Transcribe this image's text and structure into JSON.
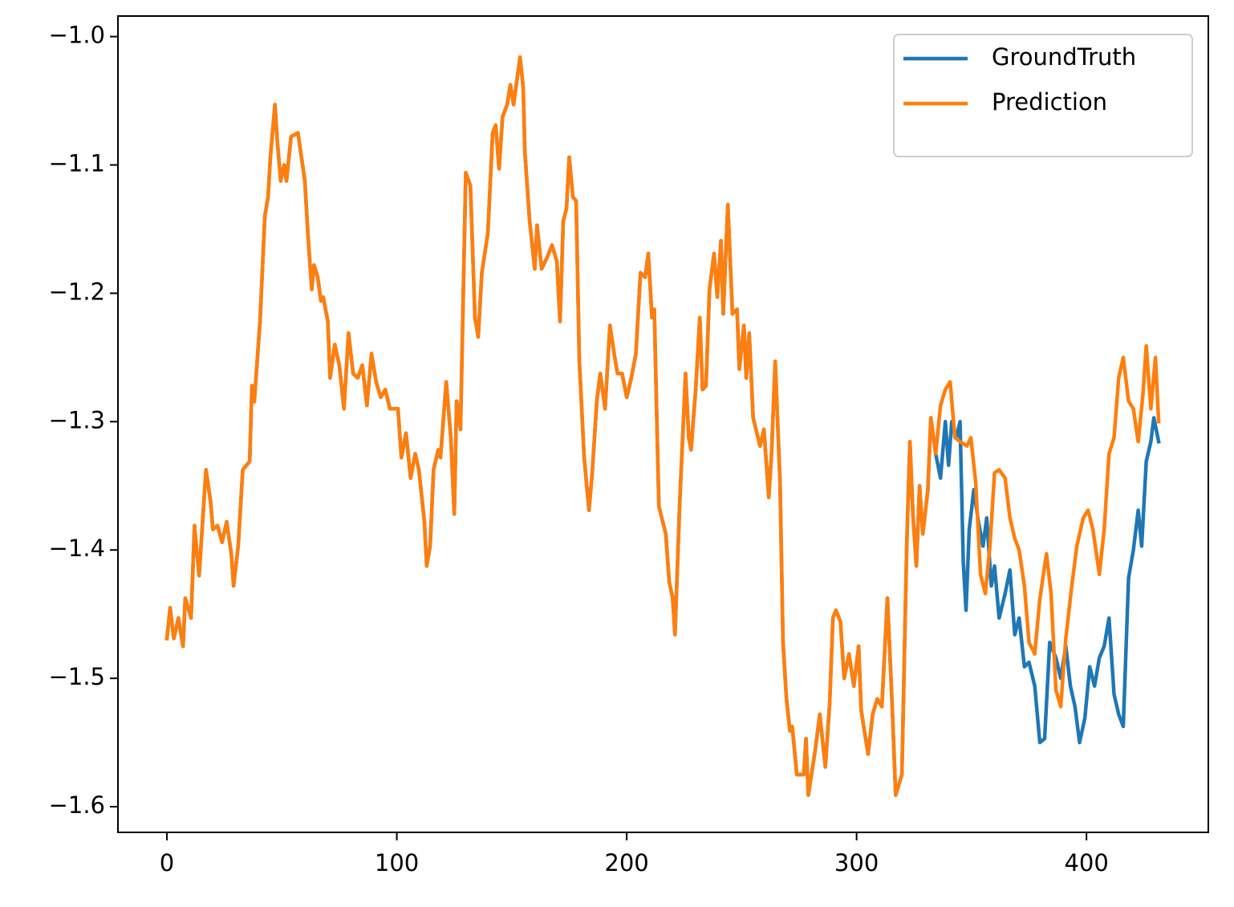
{
  "chart_data": {
    "type": "line",
    "xlim": [
      -21.3,
      453
    ],
    "ylim": [
      -1.62,
      -0.984
    ],
    "xticks": [
      0,
      100,
      200,
      300,
      400
    ],
    "yticks": [
      {
        "value": -1.0,
        "label": "−1.0"
      },
      {
        "value": -1.1,
        "label": "−1.1"
      },
      {
        "value": -1.2,
        "label": "−1.2"
      },
      {
        "value": -1.3,
        "label": "−1.3"
      },
      {
        "value": -1.4,
        "label": "−1.4"
      },
      {
        "value": -1.5,
        "label": "−1.5"
      },
      {
        "value": -1.6,
        "label": "−1.6"
      }
    ],
    "legend": "upper right",
    "series": [
      {
        "name": "GroundTruth",
        "color": "#1f77b4",
        "x": [
          0,
          1.4,
          3,
          5,
          7,
          8,
          10.5,
          12,
          14,
          17,
          19,
          20,
          22,
          24,
          26,
          28,
          29,
          31,
          33,
          36,
          37,
          38,
          40.5,
          42.6,
          44,
          45,
          47,
          48,
          49.5,
          51,
          52,
          54,
          57,
          60,
          61.4,
          63,
          64,
          65.6,
          67,
          68,
          70,
          71,
          73,
          75,
          77,
          79,
          81,
          83,
          85,
          87,
          89,
          91,
          93,
          95,
          97,
          100.5,
          102,
          104,
          106,
          108,
          109.6,
          112,
          113,
          114.5,
          116,
          118,
          119,
          121.5,
          123.5,
          125,
          126,
          127.7,
          130,
          132,
          134,
          135.4,
          137,
          139.6,
          141.7,
          143,
          144.5,
          146,
          148,
          149.4,
          150.8,
          153.6,
          155,
          155.7,
          157.8,
          160,
          161,
          163,
          165.4,
          167.5,
          169.6,
          171,
          172.4,
          173.8,
          175,
          176.6,
          178,
          179.4,
          181.5,
          183.6,
          185,
          187,
          188.5,
          190.6,
          192.7,
          194.8,
          196,
          198,
          200,
          202,
          204,
          206,
          208,
          209.4,
          211,
          212,
          213,
          214,
          217,
          218.5,
          220,
          221,
          223,
          225.6,
          227,
          228,
          230,
          231.8,
          233,
          234.5,
          236,
          238,
          239.4,
          241,
          242,
          244,
          246,
          248,
          249,
          251,
          252,
          253.3,
          255,
          258,
          259.7,
          261.8,
          263,
          264.6,
          266.7,
          268,
          269.5,
          271,
          272,
          274,
          277,
          278,
          279,
          282,
          284,
          286.4,
          288.3,
          289.7,
          291,
          293,
          294.6,
          296.7,
          298.8,
          300.9,
          302,
          305,
          307,
          309,
          311,
          313.4,
          315.5,
          317,
          319.7,
          321.8,
          323.2,
          324.5,
          326,
          327.4,
          328.8,
          331,
          332.3,
          334.4,
          336.5,
          338.6,
          340,
          341.4,
          343.4,
          345,
          346.4,
          347.6,
          349,
          351,
          353,
          355,
          356.6,
          358.6,
          360,
          362,
          364.6,
          366.7,
          368.8,
          370.7,
          373,
          375,
          377.5,
          379.7,
          381.8,
          384,
          386.7,
          388.8,
          391,
          393,
          395,
          397,
          399.3,
          401.4,
          403.5,
          405.6,
          407.7,
          409.8,
          412,
          414,
          416,
          418.3,
          420.4,
          422.5,
          424,
          426,
          428,
          429.3,
          431.4
        ],
        "values": [
          -1.469,
          -1.445,
          -1.469,
          -1.453,
          -1.475,
          -1.4375,
          -1.453,
          -1.381,
          -1.42,
          -1.3375,
          -1.3625,
          -1.384,
          -1.381,
          -1.394,
          -1.378,
          -1.403,
          -1.428,
          -1.397,
          -1.3375,
          -1.331,
          -1.272,
          -1.2845,
          -1.222,
          -1.14,
          -1.125,
          -1.094,
          -1.053,
          -1.081,
          -1.1125,
          -1.1,
          -1.1125,
          -1.078,
          -1.075,
          -1.1125,
          -1.156,
          -1.197,
          -1.178,
          -1.1875,
          -1.206,
          -1.203,
          -1.222,
          -1.266,
          -1.24,
          -1.256,
          -1.29,
          -1.231,
          -1.2625,
          -1.266,
          -1.256,
          -1.2875,
          -1.247,
          -1.269,
          -1.281,
          -1.275,
          -1.29,
          -1.29,
          -1.328,
          -1.309,
          -1.344,
          -1.325,
          -1.3375,
          -1.378,
          -1.4125,
          -1.397,
          -1.3375,
          -1.322,
          -1.328,
          -1.269,
          -1.3125,
          -1.372,
          -1.284,
          -1.306,
          -1.106,
          -1.116,
          -1.219,
          -1.234,
          -1.184,
          -1.153,
          -1.075,
          -1.069,
          -1.103,
          -1.0625,
          -1.053,
          -1.0375,
          -1.053,
          -1.016,
          -1.04,
          -1.09,
          -1.144,
          -1.181,
          -1.147,
          -1.181,
          -1.172,
          -1.1625,
          -1.175,
          -1.222,
          -1.144,
          -1.134,
          -1.094,
          -1.125,
          -1.128,
          -1.253,
          -1.328,
          -1.369,
          -1.34,
          -1.284,
          -1.2625,
          -1.29,
          -1.225,
          -1.25,
          -1.2625,
          -1.2625,
          -1.281,
          -1.266,
          -1.247,
          -1.184,
          -1.1875,
          -1.169,
          -1.219,
          -1.2125,
          -1.29,
          -1.366,
          -1.3875,
          -1.425,
          -1.4375,
          -1.466,
          -1.366,
          -1.2625,
          -1.3125,
          -1.322,
          -1.275,
          -1.219,
          -1.275,
          -1.272,
          -1.197,
          -1.169,
          -1.203,
          -1.159,
          -1.216,
          -1.131,
          -1.216,
          -1.2125,
          -1.259,
          -1.225,
          -1.266,
          -1.231,
          -1.297,
          -1.319,
          -1.306,
          -1.359,
          -1.325,
          -1.253,
          -1.347,
          -1.472,
          -1.516,
          -1.541,
          -1.5375,
          -1.575,
          -1.575,
          -1.547,
          -1.591,
          -1.556,
          -1.528,
          -1.569,
          -1.519,
          -1.453,
          -1.447,
          -1.456,
          -1.5,
          -1.481,
          -1.506,
          -1.475,
          -1.525,
          -1.559,
          -1.528,
          -1.516,
          -1.522,
          -1.4375,
          -1.522,
          -1.591,
          -1.575,
          -1.397,
          -1.3156,
          -1.372,
          -1.4125,
          -1.35,
          -1.3875,
          -1.353,
          -1.297,
          -1.325,
          -1.344,
          -1.3,
          -1.334,
          -1.3,
          -1.3125,
          -1.3,
          -1.409,
          -1.447,
          -1.384,
          -1.353,
          -1.378,
          -1.397,
          -1.375,
          -1.428,
          -1.4125,
          -1.453,
          -1.434,
          -1.4156,
          -1.466,
          -1.453,
          -1.491,
          -1.4875,
          -1.506,
          -1.55,
          -1.547,
          -1.472,
          -1.484,
          -1.5,
          -1.475,
          -1.506,
          -1.522,
          -1.55,
          -1.531,
          -1.491,
          -1.506,
          -1.484,
          -1.475,
          -1.453,
          -1.5125,
          -1.528,
          -1.5375,
          -1.422,
          -1.4,
          -1.369,
          -1.397,
          -1.331,
          -1.3156,
          -1.297,
          -1.3156
        ]
      },
      {
        "name": "Prediction",
        "color": "#ff7f0e",
        "x": [
          0,
          1.4,
          3,
          5,
          7,
          8,
          10.5,
          12,
          14,
          17,
          19,
          20,
          22,
          24,
          26,
          28,
          29,
          31,
          33,
          36,
          37,
          38,
          40.5,
          42.6,
          44,
          45,
          47,
          48,
          49.5,
          51,
          52,
          54,
          57,
          60,
          61.4,
          63,
          64,
          65.6,
          67,
          68,
          70,
          71,
          73,
          75,
          77,
          79,
          81,
          83,
          85,
          87,
          89,
          91,
          93,
          95,
          97,
          100.5,
          102,
          104,
          106,
          108,
          109.6,
          112,
          113,
          114.5,
          116,
          118,
          119,
          121.5,
          123.5,
          125,
          126,
          127.7,
          130,
          132,
          134,
          135.4,
          137,
          139.6,
          141.7,
          143,
          144.5,
          146,
          148,
          149.4,
          150.8,
          153.6,
          155,
          155.7,
          157.8,
          160,
          161,
          163,
          165.4,
          167.5,
          169.6,
          171,
          172.4,
          173.8,
          175,
          176.6,
          178,
          179.4,
          181.5,
          183.6,
          185,
          187,
          188.5,
          190.6,
          192.7,
          194.8,
          196,
          198,
          200,
          202,
          204,
          206,
          208,
          209.4,
          211,
          212,
          213,
          214,
          217,
          218.5,
          220,
          221,
          223,
          225.6,
          227,
          228,
          230,
          231.8,
          233,
          234.5,
          236,
          238,
          239.4,
          241,
          242,
          244,
          246,
          248,
          249,
          251,
          252,
          253.3,
          255,
          258,
          259.7,
          261.8,
          263,
          264.6,
          266.7,
          268,
          269.5,
          271,
          272,
          274,
          277,
          278,
          279,
          282,
          284,
          286.4,
          288.3,
          289.7,
          291,
          293,
          294.6,
          296.7,
          298.8,
          300.9,
          302,
          305,
          307,
          309,
          311,
          313.4,
          315.5,
          317,
          319.7,
          321.8,
          323.2,
          324.5,
          326,
          327.4,
          328.8,
          331,
          332.3,
          334.4,
          336.5,
          338.6,
          340.7,
          342.8,
          345,
          348,
          349.7,
          351.8,
          353.9,
          356,
          358,
          360,
          362,
          364.6,
          366.7,
          368.8,
          370.7,
          373,
          375,
          377.5,
          379.6,
          381,
          382.6,
          384.6,
          386.7,
          388.8,
          391,
          393.6,
          395.8,
          398.6,
          400.7,
          402.8,
          405.6,
          407.7,
          409.8,
          412,
          414,
          416,
          418.3,
          420.4,
          422.5,
          424.6,
          426,
          428,
          430,
          431.4
        ],
        "values": [
          -1.469,
          -1.445,
          -1.469,
          -1.453,
          -1.475,
          -1.4375,
          -1.453,
          -1.381,
          -1.42,
          -1.3375,
          -1.3625,
          -1.384,
          -1.381,
          -1.394,
          -1.378,
          -1.403,
          -1.428,
          -1.397,
          -1.3375,
          -1.331,
          -1.272,
          -1.2845,
          -1.222,
          -1.14,
          -1.125,
          -1.094,
          -1.053,
          -1.081,
          -1.1125,
          -1.1,
          -1.1125,
          -1.078,
          -1.075,
          -1.1125,
          -1.156,
          -1.197,
          -1.178,
          -1.1875,
          -1.206,
          -1.203,
          -1.222,
          -1.266,
          -1.24,
          -1.256,
          -1.29,
          -1.231,
          -1.2625,
          -1.266,
          -1.256,
          -1.2875,
          -1.247,
          -1.269,
          -1.281,
          -1.275,
          -1.29,
          -1.29,
          -1.328,
          -1.309,
          -1.344,
          -1.325,
          -1.3375,
          -1.378,
          -1.4125,
          -1.397,
          -1.3375,
          -1.322,
          -1.328,
          -1.269,
          -1.3125,
          -1.372,
          -1.284,
          -1.306,
          -1.106,
          -1.116,
          -1.219,
          -1.234,
          -1.184,
          -1.153,
          -1.075,
          -1.069,
          -1.103,
          -1.0625,
          -1.053,
          -1.0375,
          -1.053,
          -1.016,
          -1.04,
          -1.09,
          -1.144,
          -1.181,
          -1.147,
          -1.181,
          -1.172,
          -1.1625,
          -1.175,
          -1.222,
          -1.144,
          -1.134,
          -1.094,
          -1.125,
          -1.128,
          -1.253,
          -1.328,
          -1.369,
          -1.34,
          -1.284,
          -1.2625,
          -1.29,
          -1.225,
          -1.25,
          -1.2625,
          -1.2625,
          -1.281,
          -1.266,
          -1.247,
          -1.184,
          -1.1875,
          -1.169,
          -1.219,
          -1.2125,
          -1.29,
          -1.366,
          -1.3875,
          -1.425,
          -1.4375,
          -1.466,
          -1.366,
          -1.2625,
          -1.3125,
          -1.322,
          -1.275,
          -1.219,
          -1.275,
          -1.272,
          -1.197,
          -1.169,
          -1.203,
          -1.159,
          -1.216,
          -1.131,
          -1.216,
          -1.2125,
          -1.259,
          -1.225,
          -1.266,
          -1.231,
          -1.297,
          -1.319,
          -1.306,
          -1.359,
          -1.325,
          -1.253,
          -1.347,
          -1.472,
          -1.516,
          -1.541,
          -1.5375,
          -1.575,
          -1.575,
          -1.547,
          -1.591,
          -1.556,
          -1.528,
          -1.569,
          -1.519,
          -1.453,
          -1.447,
          -1.456,
          -1.5,
          -1.481,
          -1.506,
          -1.475,
          -1.525,
          -1.559,
          -1.528,
          -1.516,
          -1.522,
          -1.4375,
          -1.522,
          -1.591,
          -1.575,
          -1.397,
          -1.3156,
          -1.372,
          -1.4125,
          -1.35,
          -1.3875,
          -1.353,
          -1.297,
          -1.325,
          -1.2875,
          -1.275,
          -1.269,
          -1.3125,
          -1.3156,
          -1.319,
          -1.3125,
          -1.347,
          -1.419,
          -1.434,
          -1.397,
          -1.34,
          -1.3375,
          -1.344,
          -1.375,
          -1.391,
          -1.4,
          -1.428,
          -1.472,
          -1.481,
          -1.44,
          -1.422,
          -1.403,
          -1.434,
          -1.509,
          -1.522,
          -1.469,
          -1.428,
          -1.397,
          -1.375,
          -1.369,
          -1.384,
          -1.419,
          -1.384,
          -1.325,
          -1.3125,
          -1.266,
          -1.25,
          -1.284,
          -1.29,
          -1.3156,
          -1.278,
          -1.241,
          -1.29,
          -1.25,
          -1.3
        ]
      }
    ]
  }
}
